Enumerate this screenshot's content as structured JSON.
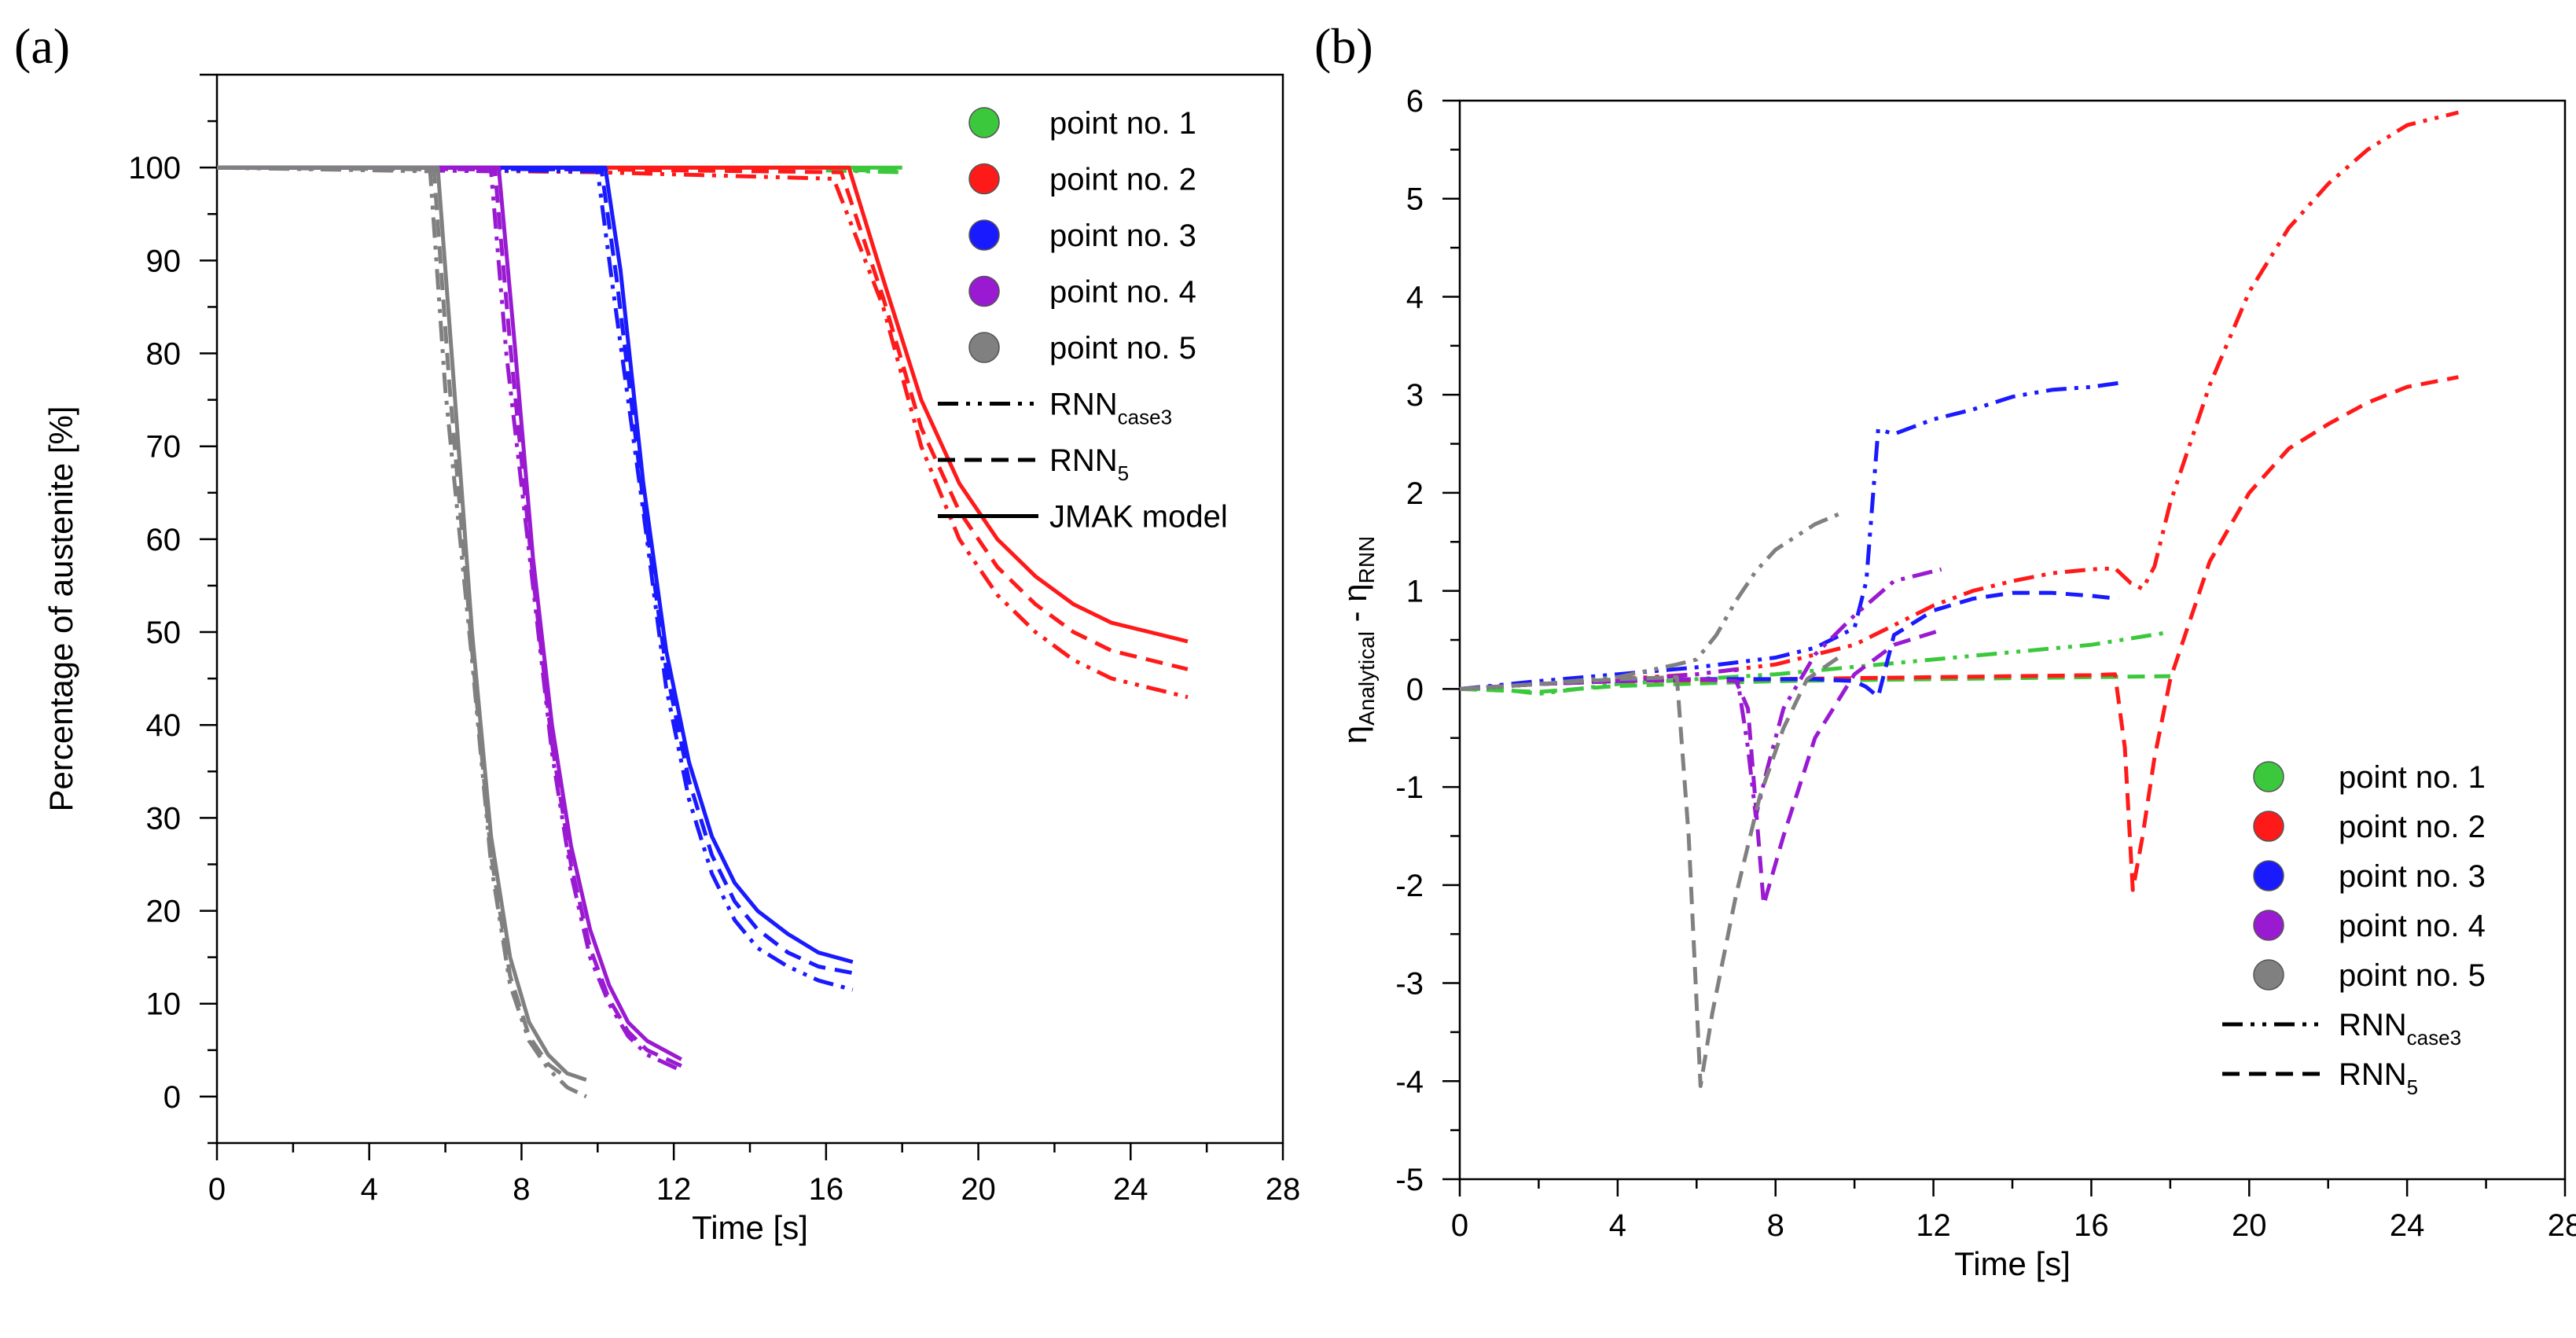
{
  "chart_data": [
    {
      "panel_label": "(a)",
      "type": "line",
      "title": "",
      "xlabel": "Time [s]",
      "ylabel": "Percentage of austenite [%]",
      "xlim": [
        0,
        28
      ],
      "ylim": [
        -5,
        110
      ],
      "xticks": [
        0,
        4,
        8,
        12,
        16,
        20,
        24,
        28
      ],
      "yticks": [
        0,
        10,
        20,
        30,
        40,
        50,
        60,
        70,
        80,
        90,
        100
      ],
      "legend_position": "top-right",
      "legend": [
        {
          "marker": "circle",
          "color": "#3cc83c",
          "label": "point no. 1"
        },
        {
          "marker": "circle",
          "color": "#ff1a1a",
          "label": "point no. 2"
        },
        {
          "marker": "circle",
          "color": "#1a1aff",
          "label": "point no. 3"
        },
        {
          "marker": "circle",
          "color": "#9a1ad2",
          "label": "point no. 4"
        },
        {
          "marker": "circle",
          "color": "#808080",
          "label": "point no. 5"
        },
        {
          "marker": "dashdotdot",
          "color": "#000000",
          "label": "RNN",
          "subscript": "case3"
        },
        {
          "marker": "dashed",
          "color": "#000000",
          "label": "RNN",
          "subscript": "5"
        },
        {
          "marker": "solid",
          "color": "#000000",
          "label": "JMAK model"
        }
      ],
      "series": [
        {
          "name": "point no. 1 - JMAK",
          "color": "#3cc83c",
          "style": "solid",
          "x": [
            0,
            18
          ],
          "y": [
            100,
            100
          ]
        },
        {
          "name": "point no. 1 - RNN5",
          "color": "#3cc83c",
          "style": "dashed",
          "x": [
            16,
            18
          ],
          "y": [
            99.8,
            99.6
          ]
        },
        {
          "name": "point no. 1 - RNNcase3",
          "color": "#3cc83c",
          "style": "dashdotdot",
          "x": [
            16,
            18
          ],
          "y": [
            99.7,
            99.5
          ]
        },
        {
          "name": "point no. 2 - JMAK",
          "color": "#ff1a1a",
          "style": "solid",
          "x": [
            0,
            10,
            16.6,
            17.5,
            18.5,
            19.5,
            20.5,
            21.5,
            22.5,
            23.5,
            24.5,
            25.5
          ],
          "y": [
            100,
            100,
            100,
            88,
            75,
            66,
            60,
            56,
            53,
            51,
            50,
            49
          ]
        },
        {
          "name": "point no. 2 - RNN5",
          "color": "#ff1a1a",
          "style": "dashed",
          "x": [
            0,
            10,
            16.4,
            17.5,
            18.5,
            19.5,
            20.5,
            21.5,
            22.5,
            23.5,
            24.5,
            25.5
          ],
          "y": [
            100,
            99.8,
            99.5,
            86,
            72,
            63,
            57,
            53,
            50,
            48,
            47,
            46
          ]
        },
        {
          "name": "point no. 2 - RNNcase3",
          "color": "#ff1a1a",
          "style": "dashdotdot",
          "x": [
            0,
            10,
            16.2,
            17.5,
            18.5,
            19.5,
            20.5,
            21.5,
            22.5,
            23.5,
            24.5,
            25.5
          ],
          "y": [
            100,
            99.5,
            98.8,
            85,
            70,
            60,
            54,
            50,
            47,
            45,
            44,
            43
          ]
        },
        {
          "name": "point no. 3 - JMAK",
          "color": "#1a1aff",
          "style": "solid",
          "x": [
            0,
            10.2,
            10.6,
            11.2,
            11.8,
            12.4,
            13,
            13.6,
            14.2,
            15,
            15.8,
            16.7
          ],
          "y": [
            100,
            100,
            89,
            66,
            48,
            36,
            28,
            23,
            20,
            17.5,
            15.5,
            14.5
          ]
        },
        {
          "name": "point no. 3 - RNN5",
          "color": "#1a1aff",
          "style": "dashed",
          "x": [
            0,
            10.1,
            10.5,
            11.2,
            11.8,
            12.4,
            13,
            13.6,
            14.2,
            15,
            15.8,
            16.7
          ],
          "y": [
            100,
            99.8,
            88,
            64,
            46,
            34,
            26,
            21,
            18,
            15.5,
            14,
            13.3
          ]
        },
        {
          "name": "point no. 3 - RNNcase3",
          "color": "#1a1aff",
          "style": "dashdotdot",
          "x": [
            0,
            10,
            10.4,
            11.2,
            11.8,
            12.4,
            13,
            13.6,
            14.2,
            15,
            15.8,
            16.7
          ],
          "y": [
            100,
            99.6,
            87,
            63,
            44,
            32,
            24,
            19,
            16,
            14,
            12.5,
            11.5
          ]
        },
        {
          "name": "point no. 4 - JMAK",
          "color": "#9a1ad2",
          "style": "solid",
          "x": [
            0,
            7.4,
            7.8,
            8.3,
            8.8,
            9.3,
            9.8,
            10.3,
            10.8,
            11.3,
            12.2
          ],
          "y": [
            100,
            100,
            82,
            58,
            40,
            27,
            18,
            12,
            8,
            6,
            4
          ]
        },
        {
          "name": "point no. 4 - RNN5",
          "color": "#9a1ad2",
          "style": "dashed",
          "x": [
            0,
            7.3,
            7.7,
            8.3,
            8.8,
            9.3,
            9.8,
            10.3,
            10.8,
            11.3,
            12.2
          ],
          "y": [
            100,
            99.8,
            81,
            56,
            38,
            25,
            16,
            10.5,
            7,
            5,
            3.3
          ]
        },
        {
          "name": "point no. 4 - RNNcase3",
          "color": "#9a1ad2",
          "style": "dashdotdot",
          "x": [
            0,
            7.2,
            7.6,
            8.3,
            8.8,
            9.3,
            9.8,
            10.3,
            10.8,
            11.3,
            12.2
          ],
          "y": [
            100,
            99.6,
            80,
            55,
            37,
            24,
            15,
            10,
            6.5,
            4.5,
            2.8
          ]
        },
        {
          "name": "point no. 5 - JMAK",
          "color": "#808080",
          "style": "solid",
          "x": [
            0,
            5.8,
            6.2,
            6.7,
            7.2,
            7.7,
            8.2,
            8.7,
            9.2,
            9.7
          ],
          "y": [
            100,
            100,
            78,
            50,
            28,
            15,
            8,
            4.5,
            2.5,
            1.8
          ]
        },
        {
          "name": "point no. 5 - RNN5",
          "color": "#808080",
          "style": "dashed",
          "x": [
            0,
            5.7,
            6.1,
            6.7,
            7.2,
            7.7,
            8.2,
            8.7,
            9.2
          ],
          "y": [
            100,
            99.8,
            77,
            48,
            26,
            13,
            6.5,
            3.5,
            2
          ]
        },
        {
          "name": "point no. 5 - RNNcase3",
          "color": "#808080",
          "style": "dashdotdot",
          "x": [
            0,
            5.6,
            6,
            6.7,
            7.2,
            7.7,
            8.2,
            8.7,
            9.2,
            9.7
          ],
          "y": [
            100,
            99.6,
            76,
            47,
            25,
            12,
            6,
            3,
            1,
            0
          ]
        }
      ]
    },
    {
      "panel_label": "(b)",
      "type": "line",
      "title": "",
      "xlabel": "Time [s]",
      "ylabel": "η",
      "ylabel_sub1": "Analytical",
      "ylabel_mid": " - η",
      "ylabel_sub2": "RNN",
      "xlim": [
        0,
        28
      ],
      "ylim": [
        -5,
        6
      ],
      "xticks": [
        0,
        4,
        8,
        12,
        16,
        20,
        24,
        28
      ],
      "yticks": [
        -5,
        -4,
        -3,
        -2,
        -1,
        0,
        1,
        2,
        3,
        4,
        5,
        6
      ],
      "legend_position": "bottom-right",
      "legend": [
        {
          "marker": "circle",
          "color": "#3cc83c",
          "label": "point no. 1"
        },
        {
          "marker": "circle",
          "color": "#ff1a1a",
          "label": "point no. 2"
        },
        {
          "marker": "circle",
          "color": "#1a1aff",
          "label": "point no. 3"
        },
        {
          "marker": "circle",
          "color": "#9a1ad2",
          "label": "point no. 4"
        },
        {
          "marker": "circle",
          "color": "#808080",
          "label": "point no. 5"
        },
        {
          "marker": "dashdotdot",
          "color": "#000000",
          "label": "RNN",
          "subscript": "case3"
        },
        {
          "marker": "dashed",
          "color": "#000000",
          "label": "RNN",
          "subscript": "5"
        }
      ],
      "series": [
        {
          "name": "point no. 1 - RNNcase3",
          "color": "#3cc83c",
          "style": "dashdotdot",
          "x": [
            0,
            1,
            2,
            4,
            8,
            12,
            16,
            18
          ],
          "y": [
            0,
            0,
            -0.05,
            0.05,
            0.15,
            0.3,
            0.45,
            0.58
          ]
        },
        {
          "name": "point no. 1 - RNN5",
          "color": "#3cc83c",
          "style": "dashed",
          "x": [
            0,
            2,
            4,
            8,
            12,
            16,
            18
          ],
          "y": [
            0,
            -0.03,
            0.03,
            0.08,
            0.1,
            0.12,
            0.13
          ]
        },
        {
          "name": "point no. 2 - RNNcase3",
          "color": "#ff1a1a",
          "style": "dashdotdot",
          "x": [
            0,
            2,
            4,
            6,
            8,
            10,
            11,
            12,
            13,
            14,
            15,
            16,
            16.6,
            17,
            17.3,
            17.6,
            18,
            19,
            20,
            21,
            22,
            23,
            24,
            25.3
          ],
          "y": [
            0,
            0.05,
            0.1,
            0.15,
            0.25,
            0.45,
            0.65,
            0.85,
            1.0,
            1.1,
            1.18,
            1.22,
            1.23,
            1.08,
            1.02,
            1.25,
            1.9,
            3.1,
            4.05,
            4.7,
            5.15,
            5.5,
            5.75,
            5.88
          ]
        },
        {
          "name": "point no. 2 - RNN5",
          "color": "#ff1a1a",
          "style": "dashed",
          "x": [
            0,
            2,
            4,
            8,
            12,
            16,
            16.6,
            16.85,
            17.05,
            17.3,
            17.6,
            18,
            19,
            20,
            21,
            22,
            23,
            24,
            25.3
          ],
          "y": [
            0,
            0.05,
            0.08,
            0.1,
            0.12,
            0.14,
            0.15,
            -0.6,
            -2.05,
            -1.5,
            -0.7,
            0.1,
            1.3,
            2.0,
            2.45,
            2.7,
            2.92,
            3.08,
            3.18
          ]
        },
        {
          "name": "point no. 3 - RNNcase3",
          "color": "#1a1aff",
          "style": "dashdotdot",
          "x": [
            0,
            2,
            4,
            6,
            8,
            9,
            10,
            10.3,
            10.6,
            11,
            12,
            13,
            14,
            15,
            16,
            16.7
          ],
          "y": [
            0,
            0.08,
            0.15,
            0.22,
            0.32,
            0.42,
            0.62,
            1.1,
            2.65,
            2.6,
            2.75,
            2.85,
            2.98,
            3.05,
            3.08,
            3.12
          ]
        },
        {
          "name": "point no. 3 - RNN5",
          "color": "#1a1aff",
          "style": "dashed",
          "x": [
            0,
            2,
            4,
            6,
            8,
            9,
            10,
            10.3,
            10.6,
            11,
            12,
            13,
            14,
            15,
            16,
            16.7
          ],
          "y": [
            0,
            0.05,
            0.08,
            0.1,
            0.1,
            0.1,
            0.08,
            0.02,
            -0.08,
            0.55,
            0.8,
            0.92,
            0.98,
            0.98,
            0.95,
            0.92
          ]
        },
        {
          "name": "point no. 4 - RNNcase3",
          "color": "#9a1ad2",
          "style": "dashdotdot",
          "x": [
            0,
            2,
            4,
            6,
            7,
            7.3,
            7.5,
            7.8,
            8.2,
            9,
            10,
            11,
            12.2
          ],
          "y": [
            0,
            0.05,
            0.08,
            0.15,
            0.2,
            -0.6,
            -1.3,
            -0.8,
            -0.2,
            0.35,
            0.75,
            1.1,
            1.22
          ]
        },
        {
          "name": "point no. 4 - RNN5",
          "color": "#9a1ad2",
          "style": "dashed",
          "x": [
            0,
            2,
            4,
            6,
            7,
            7.3,
            7.7,
            8.2,
            9,
            10,
            11,
            12.2
          ],
          "y": [
            0,
            0.05,
            0.08,
            0.1,
            0.08,
            -0.2,
            -2.2,
            -1.5,
            -0.5,
            0.15,
            0.45,
            0.6
          ]
        },
        {
          "name": "point no. 5 - RNNcase3",
          "color": "#808080",
          "style": "dashdotdot",
          "x": [
            0,
            2,
            4,
            5.5,
            6,
            6.5,
            7,
            7.5,
            8,
            8.5,
            9,
            9.7
          ],
          "y": [
            0,
            0.05,
            0.12,
            0.25,
            0.3,
            0.55,
            0.9,
            1.2,
            1.42,
            1.55,
            1.68,
            1.8
          ]
        },
        {
          "name": "point no. 5 - RNN5",
          "color": "#808080",
          "style": "dashed",
          "x": [
            0,
            2,
            4,
            5.5,
            5.8,
            6.1,
            6.4,
            7,
            7.6,
            8.2,
            8.8,
            9.7
          ],
          "y": [
            0,
            0.05,
            0.1,
            0.12,
            -1.5,
            -4.05,
            -3.3,
            -2.1,
            -1.1,
            -0.4,
            0.1,
            0.35
          ]
        }
      ]
    }
  ]
}
